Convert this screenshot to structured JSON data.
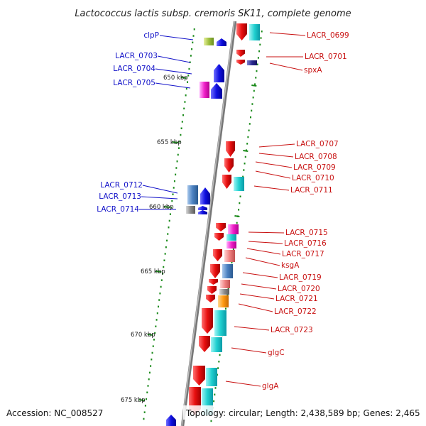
{
  "title": "Lactococcus lactis subsp. cremoris SK11, complete genome",
  "footer": {
    "accession": "Accession: NC_008527",
    "topology": "Topology: circular; Length: 2,438,589 bp; Genes: 2,465"
  },
  "kbp_ticks": [
    "650 kbp",
    "655 kbp",
    "660 kbp",
    "665 kbp",
    "670 kbp",
    "675 kbp"
  ],
  "left_labels": [
    "clpP",
    "LACR_0703",
    "LACR_0704",
    "LACR_0705",
    "LACR_0712",
    "LACR_0713",
    "LACR_0714"
  ],
  "right_labels": [
    "LACR_0699",
    "LACR_0701",
    "spxA",
    "LACR_0707",
    "LACR_0708",
    "LACR_0709",
    "LACR_0710",
    "LACR_0711",
    "LACR_0715",
    "LACR_0716",
    "LACR_0717",
    "ksgA",
    "LACR_0719",
    "LACR_0720",
    "LACR_0721",
    "LACR_0722",
    "LACR_0723",
    "glgC",
    "glgA"
  ],
  "colors": {
    "backbone": "#8a8a8a",
    "forward_gene": "#e81010",
    "reverse_gene": "#1010e0",
    "left_label": "#1010c8",
    "right_label": "#c81010",
    "tick": "#1a8a1a"
  }
}
